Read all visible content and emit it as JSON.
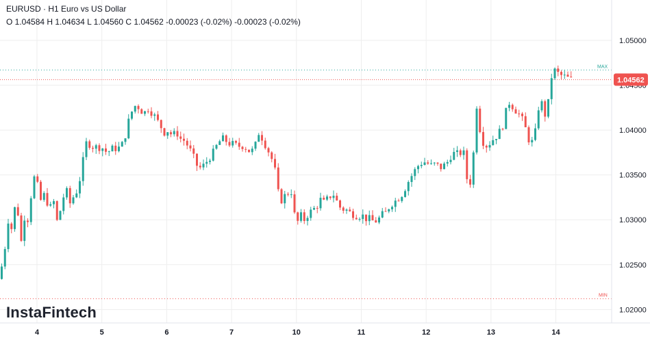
{
  "header": {
    "symbol_line": "EURUSD · H1 Euro vs US Dollar",
    "ohlc_line": "O 1.04584 H 1.04634 L 1.04560 C 1.04562 -0.00023 (-0.02%) -0.00023 (-0.02%)"
  },
  "brand": "InstaFintech",
  "colors": {
    "up": "#26a69a",
    "down": "#ef5350",
    "grid": "#eeeeee",
    "max_line": "#26a69a",
    "min_line": "#ef5350",
    "last_price_bg": "#ef5350"
  },
  "chart_data": {
    "type": "candlestick",
    "title": "EURUSD · H1 Euro vs US Dollar",
    "x_labels": [
      "4",
      "5",
      "6",
      "7",
      "10",
      "11",
      "12",
      "13",
      "14"
    ],
    "y_ticks": [
      "1.05000",
      "1.04500",
      "1.04000",
      "1.03500",
      "1.03000",
      "1.02500",
      "1.02000"
    ],
    "ylim": [
      1.0185,
      1.0545
    ],
    "max_label": "MAX",
    "min_label": "MIN",
    "max_level": 1.0467,
    "min_level": 1.0212,
    "last_price": "1.04562",
    "last_price_value": 1.04562,
    "grid": true,
    "close_path": [
      [
        0,
        1.0238
      ],
      [
        6,
        1.0262
      ],
      [
        12,
        1.03
      ],
      [
        18,
        1.0288
      ],
      [
        24,
        1.033
      ],
      [
        30,
        1.027
      ],
      [
        36,
        1.0305
      ],
      [
        42,
        1.03
      ],
      [
        48,
        1.035
      ],
      [
        54,
        1.034
      ],
      [
        60,
        1.032
      ],
      [
        66,
        1.033
      ],
      [
        72,
        1.031
      ],
      [
        78,
        1.0322
      ],
      [
        84,
        1.0295
      ],
      [
        90,
        1.0318
      ],
      [
        96,
        1.0335
      ],
      [
        102,
        1.0318
      ],
      [
        108,
        1.0327
      ],
      [
        114,
        1.0335
      ],
      [
        120,
        1.036
      ],
      [
        126,
        1.0385
      ],
      [
        132,
        1.0385
      ],
      [
        138,
        1.038
      ],
      [
        144,
        1.0382
      ],
      [
        150,
        1.038
      ],
      [
        156,
        1.0375
      ],
      [
        162,
        1.0378
      ],
      [
        168,
        1.038
      ],
      [
        174,
        1.038
      ],
      [
        180,
        1.0385
      ],
      [
        186,
        1.0405
      ],
      [
        192,
        1.042
      ],
      [
        198,
        1.0428
      ],
      [
        204,
        1.0425
      ],
      [
        210,
        1.0418
      ],
      [
        216,
        1.0425
      ],
      [
        222,
        1.042
      ],
      [
        228,
        1.0412
      ],
      [
        234,
        1.0405
      ],
      [
        240,
        1.0398
      ],
      [
        246,
        1.04
      ],
      [
        252,
        1.0393
      ],
      [
        258,
        1.0398
      ],
      [
        264,
        1.039
      ],
      [
        270,
        1.0388
      ],
      [
        276,
        1.038
      ],
      [
        282,
        1.037
      ],
      [
        288,
        1.036
      ],
      [
        294,
        1.0357
      ],
      [
        300,
        1.0363
      ],
      [
        306,
        1.037
      ],
      [
        312,
        1.0375
      ],
      [
        318,
        1.0385
      ],
      [
        324,
        1.039
      ],
      [
        330,
        1.0388
      ],
      [
        336,
        1.0385
      ],
      [
        342,
        1.0383
      ],
      [
        348,
        1.0382
      ],
      [
        354,
        1.0383
      ],
      [
        360,
        1.038
      ],
      [
        366,
        1.0375
      ],
      [
        372,
        1.038
      ],
      [
        378,
        1.0398
      ],
      [
        384,
        1.039
      ],
      [
        390,
        1.038
      ],
      [
        396,
        1.037
      ],
      [
        402,
        1.0353
      ],
      [
        408,
        1.032
      ],
      [
        414,
        1.0325
      ],
      [
        420,
        1.033
      ],
      [
        426,
        1.0332
      ],
      [
        432,
        1.0292
      ],
      [
        438,
        1.0305
      ],
      [
        444,
        1.03
      ],
      [
        450,
        1.0307
      ],
      [
        456,
        1.031
      ],
      [
        462,
        1.0315
      ],
      [
        468,
        1.0322
      ],
      [
        474,
        1.0318
      ],
      [
        480,
        1.0325
      ],
      [
        486,
        1.033
      ],
      [
        492,
        1.032
      ],
      [
        498,
        1.0312
      ],
      [
        504,
        1.0312
      ],
      [
        510,
        1.0308
      ],
      [
        516,
        1.0307
      ],
      [
        522,
        1.0305
      ],
      [
        528,
        1.0305
      ],
      [
        534,
        1.0302
      ],
      [
        540,
        1.03
      ],
      [
        546,
        1.0298
      ],
      [
        552,
        1.03
      ],
      [
        558,
        1.0305
      ],
      [
        564,
        1.0308
      ],
      [
        570,
        1.0318
      ],
      [
        576,
        1.032
      ],
      [
        582,
        1.0325
      ],
      [
        588,
        1.033
      ],
      [
        594,
        1.034
      ],
      [
        600,
        1.0348
      ],
      [
        606,
        1.0355
      ],
      [
        612,
        1.0362
      ],
      [
        618,
        1.0365
      ],
      [
        624,
        1.0363
      ],
      [
        630,
        1.036
      ],
      [
        636,
        1.0362
      ],
      [
        642,
        1.0358
      ],
      [
        648,
        1.036
      ],
      [
        654,
        1.0365
      ],
      [
        660,
        1.0375
      ],
      [
        666,
        1.0372
      ],
      [
        672,
        1.0375
      ],
      [
        678,
        1.0373
      ],
      [
        684,
        1.033
      ],
      [
        690,
        1.036
      ],
      [
        696,
        1.0428
      ],
      [
        702,
        1.0395
      ],
      [
        708,
        1.0382
      ],
      [
        714,
        1.0385
      ],
      [
        720,
        1.039
      ],
      [
        726,
        1.0395
      ],
      [
        732,
        1.04
      ],
      [
        738,
        1.0418
      ],
      [
        744,
        1.0432
      ],
      [
        750,
        1.0425
      ],
      [
        756,
        1.042
      ],
      [
        762,
        1.0412
      ],
      [
        768,
        1.04
      ],
      [
        774,
        1.0385
      ],
      [
        780,
        1.0388
      ],
      [
        786,
        1.0425
      ],
      [
        792,
        1.043
      ],
      [
        798,
        1.041
      ],
      [
        804,
        1.0458
      ],
      [
        810,
        1.0466
      ],
      [
        816,
        1.0462
      ],
      [
        822,
        1.046
      ],
      [
        828,
        1.0458
      ],
      [
        834,
        1.04562
      ]
    ]
  }
}
